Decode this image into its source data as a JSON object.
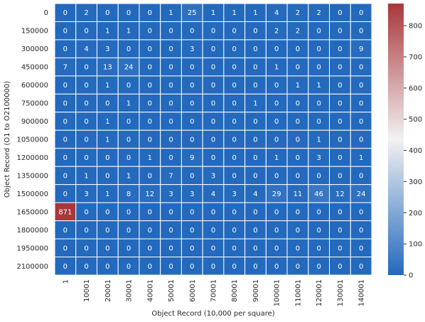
{
  "chart_data": {
    "type": "heatmap",
    "title": "",
    "xlabel": "Object Record (10,000 per square)",
    "ylabel": "Object Record (O1 to O2100000)",
    "x_categories": [
      "1",
      "10001",
      "20001",
      "30001",
      "40001",
      "50001",
      "60001",
      "70001",
      "80001",
      "90001",
      "100001",
      "110001",
      "120001",
      "130001",
      "140001"
    ],
    "y_categories": [
      "0",
      "150000",
      "300000",
      "450000",
      "600000",
      "750000",
      "900000",
      "1050000",
      "1200000",
      "1350000",
      "1500000",
      "1650000",
      "1800000",
      "1950000",
      "2100000"
    ],
    "values": [
      [
        0,
        2,
        0,
        0,
        0,
        1,
        25,
        1,
        1,
        1,
        4,
        2,
        2,
        0,
        0
      ],
      [
        0,
        0,
        1,
        1,
        0,
        0,
        0,
        0,
        0,
        0,
        2,
        2,
        0,
        0,
        0
      ],
      [
        0,
        4,
        3,
        0,
        0,
        0,
        3,
        0,
        0,
        0,
        0,
        0,
        0,
        0,
        9
      ],
      [
        7,
        0,
        13,
        24,
        0,
        0,
        0,
        0,
        0,
        0,
        1,
        0,
        0,
        0,
        0
      ],
      [
        0,
        0,
        1,
        0,
        0,
        0,
        0,
        0,
        0,
        0,
        0,
        1,
        1,
        0,
        0
      ],
      [
        0,
        0,
        0,
        1,
        0,
        0,
        0,
        0,
        0,
        1,
        0,
        0,
        0,
        0,
        0
      ],
      [
        0,
        0,
        1,
        0,
        0,
        0,
        0,
        0,
        0,
        0,
        0,
        0,
        0,
        0,
        0
      ],
      [
        0,
        0,
        1,
        0,
        0,
        0,
        0,
        0,
        0,
        0,
        0,
        0,
        1,
        0,
        0
      ],
      [
        0,
        0,
        0,
        0,
        1,
        0,
        9,
        0,
        0,
        0,
        1,
        0,
        3,
        0,
        1
      ],
      [
        0,
        1,
        0,
        1,
        0,
        7,
        0,
        3,
        0,
        0,
        0,
        0,
        0,
        0,
        0
      ],
      [
        0,
        3,
        1,
        8,
        12,
        3,
        3,
        4,
        3,
        4,
        29,
        11,
        46,
        12,
        24
      ],
      [
        871,
        0,
        0,
        0,
        0,
        0,
        0,
        0,
        0,
        0,
        0,
        0,
        0,
        0,
        0
      ],
      [
        0,
        0,
        0,
        0,
        0,
        0,
        0,
        0,
        0,
        0,
        0,
        0,
        0,
        0,
        0
      ],
      [
        0,
        0,
        0,
        0,
        0,
        0,
        0,
        0,
        0,
        0,
        0,
        0,
        0,
        0,
        0
      ],
      [
        0,
        0,
        0,
        0,
        0,
        0,
        0,
        0,
        0,
        0,
        0,
        0,
        0,
        0,
        0
      ]
    ],
    "colorbar": {
      "colormap": "vlag",
      "min": 0,
      "max": 871,
      "ticks": [
        0,
        100,
        200,
        300,
        400,
        500,
        600,
        700,
        800
      ]
    },
    "colors": {
      "low": "#2369bd",
      "mid": "#f2f2f2",
      "high": "#a9373b",
      "gridline": "#ffffff"
    },
    "annotated": true
  }
}
